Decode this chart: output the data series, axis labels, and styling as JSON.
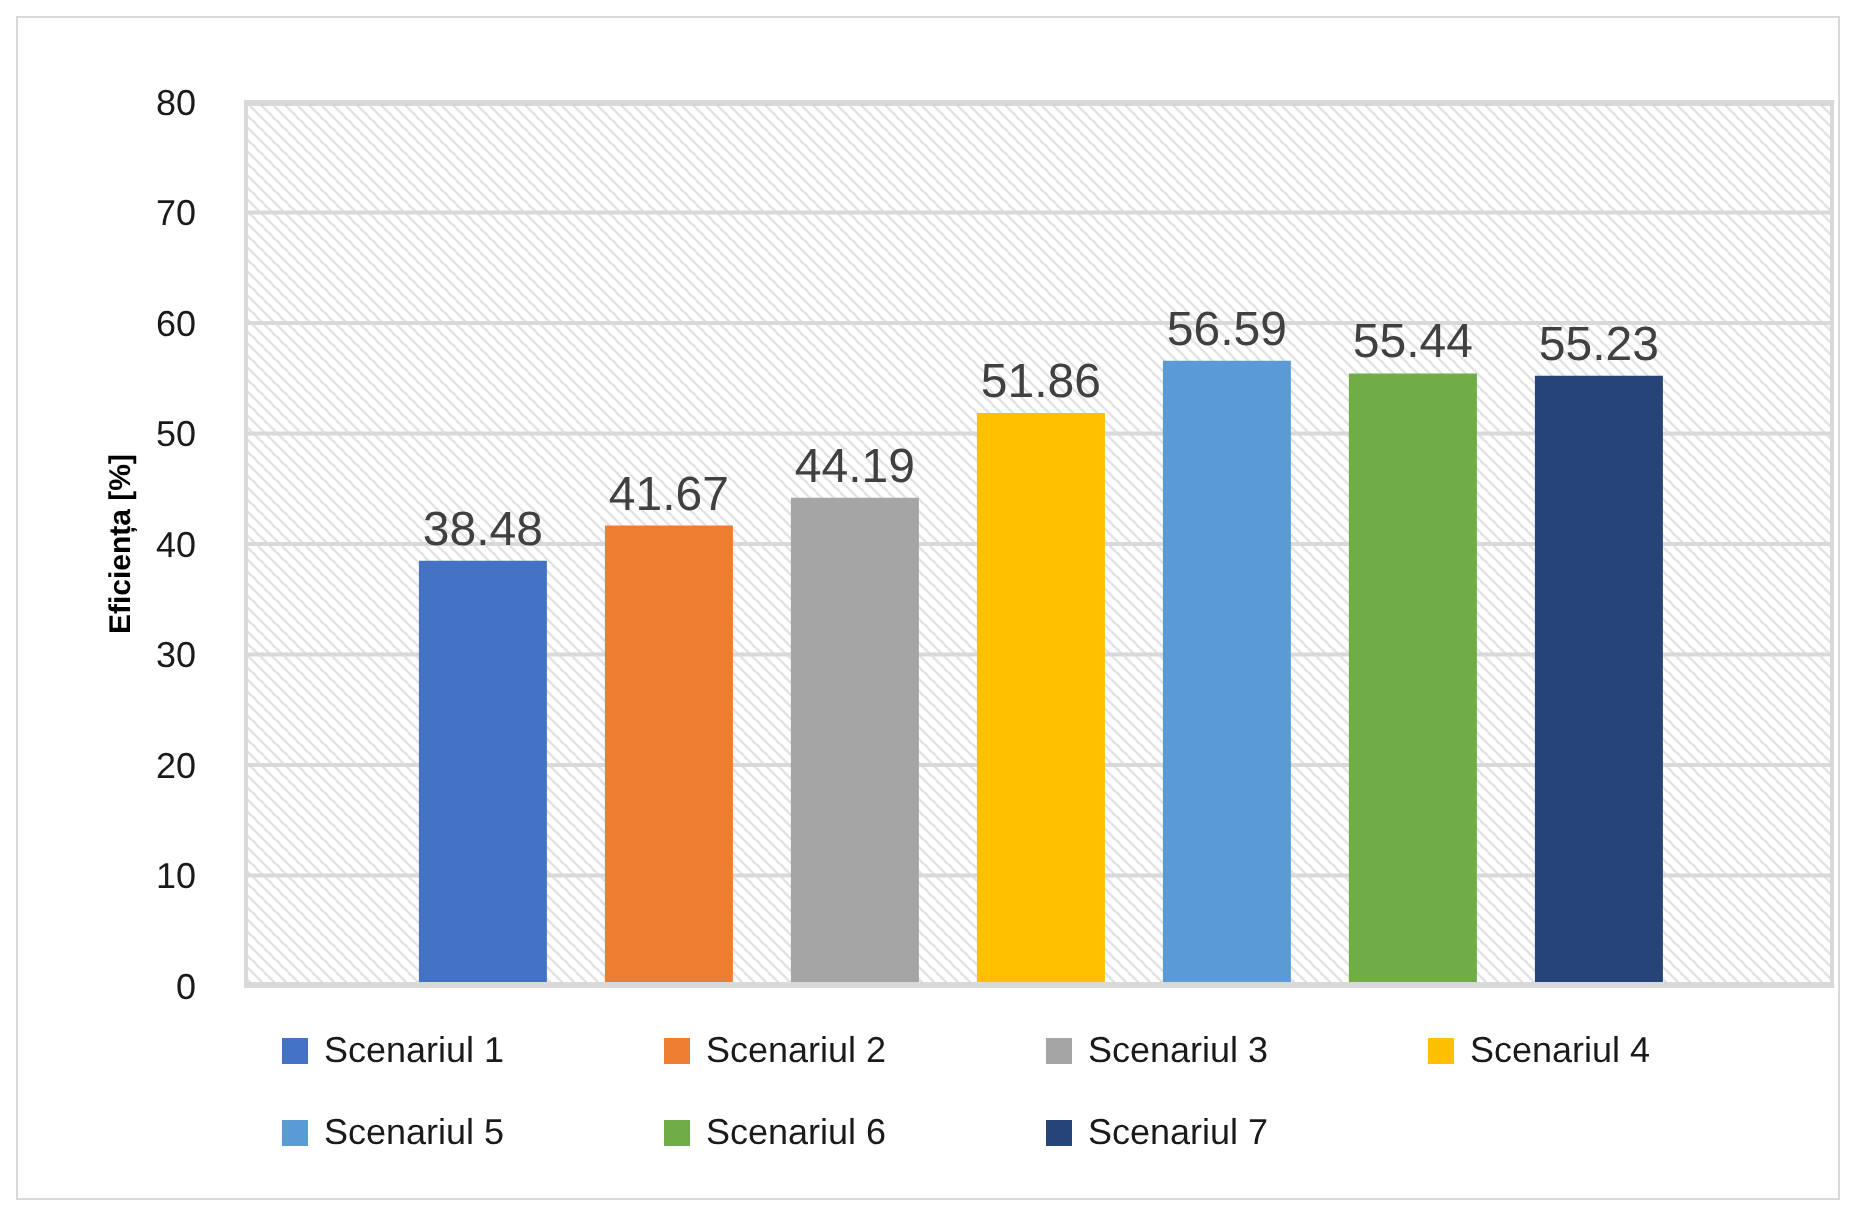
{
  "chart_data": {
    "type": "bar",
    "ylabel": "Eficiența [%]",
    "categories": [
      null
    ],
    "series": [
      {
        "name": "Scenariul 1",
        "color": "#4472c4",
        "values": [
          38.48
        ]
      },
      {
        "name": "Scenariul 2",
        "color": "#ed7d31",
        "values": [
          41.67
        ]
      },
      {
        "name": "Scenariul 3",
        "color": "#a5a5a5",
        "values": [
          44.19
        ]
      },
      {
        "name": "Scenariul 4",
        "color": "#ffc000",
        "values": [
          51.86
        ]
      },
      {
        "name": "Scenariul 5",
        "color": "#5b9bd5",
        "values": [
          56.59
        ]
      },
      {
        "name": "Scenariul 6",
        "color": "#70ad47",
        "values": [
          55.44
        ]
      },
      {
        "name": "Scenariul 7",
        "color": "#264478",
        "values": [
          55.23
        ]
      }
    ],
    "ylim": [
      0,
      80
    ],
    "yticks": [
      0,
      10,
      20,
      30,
      40,
      50,
      60,
      70,
      80
    ],
    "grid": "y",
    "legend": "bottom",
    "data_labels": true
  }
}
